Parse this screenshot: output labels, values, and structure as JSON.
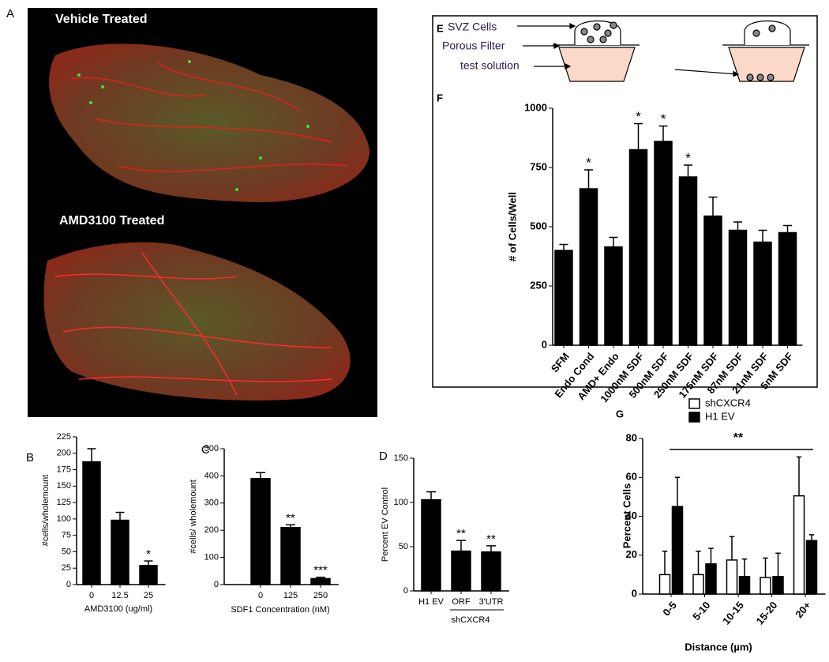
{
  "panels": {
    "letters": [
      "A",
      "B",
      "C",
      "D",
      "E",
      "F",
      "G"
    ],
    "image_labels": [
      "Vehicle Treated",
      "AMD3100 Treated"
    ],
    "diagram_labels": [
      "SVZ Cells",
      "Porous Filter",
      "test solution"
    ]
  },
  "chart_data": [
    {
      "type": "bar",
      "categories": [
        "0",
        "12.5",
        "25"
      ],
      "values": [
        187,
        98,
        29
      ],
      "errors": [
        20,
        12,
        7
      ],
      "significance": [
        null,
        null,
        "*"
      ],
      "xlabel": "AMD3100 (ug/ml)",
      "ylabel": "#cells/wholemount",
      "ylim": [
        0,
        225
      ],
      "yticks": [
        0,
        25,
        50,
        75,
        100,
        125,
        150,
        175,
        200,
        225
      ],
      "color": "#000000"
    },
    {
      "type": "bar",
      "categories": [
        "0",
        "125",
        "250"
      ],
      "values": [
        390,
        210,
        22
      ],
      "errors": [
        22,
        10,
        5
      ],
      "significance": [
        null,
        "**",
        "***"
      ],
      "xlabel": "SDF1 Concentration (nM)",
      "ylabel": "#cells/ wholemount",
      "ylim": [
        0,
        500
      ],
      "yticks": [
        0,
        100,
        200,
        300,
        400,
        500
      ],
      "color": "#000000"
    },
    {
      "type": "bar",
      "categories": [
        "H1 EV",
        "ORF",
        "3'UTR"
      ],
      "values": [
        103,
        45,
        44
      ],
      "errors": [
        9,
        12,
        7
      ],
      "significance": [
        null,
        "**",
        "**"
      ],
      "group_label": "shCXCR4",
      "ylabel": "Percent EV Control",
      "ylim": [
        0,
        150
      ],
      "yticks": [
        0,
        50,
        100,
        150
      ],
      "color": "#000000"
    },
    {
      "type": "bar",
      "categories": [
        "SFM",
        "Endo Cond",
        "AMD+ Endo",
        "1000nM SDF",
        "500nM SDF",
        "250nM SDF",
        "175nM SDF",
        "87nM SDF",
        "21nM SDF",
        "5nM SDF"
      ],
      "values": [
        400,
        660,
        415,
        825,
        860,
        710,
        545,
        485,
        435,
        475
      ],
      "errors": [
        25,
        80,
        40,
        110,
        65,
        50,
        80,
        35,
        50,
        30
      ],
      "significance": [
        null,
        "*",
        null,
        "*",
        "*",
        "*",
        null,
        null,
        null,
        null
      ],
      "ylabel": "# of Cells/Well",
      "ylim": [
        0,
        1000
      ],
      "yticks": [
        0,
        250,
        500,
        750,
        1000
      ],
      "color": "#000000"
    },
    {
      "type": "grouped_bar",
      "categories": [
        "0-5",
        "5-10",
        "10-15",
        "15-20",
        "20+"
      ],
      "series": [
        {
          "name": "shCXCR4",
          "color": "#ffffff",
          "values": [
            10,
            10,
            17.5,
            8.5,
            50.5
          ],
          "errors": [
            12,
            12,
            12,
            10,
            20
          ]
        },
        {
          "name": "H1 EV",
          "color": "#000000",
          "values": [
            45,
            15.5,
            9,
            9,
            27.5
          ],
          "errors": [
            15,
            8,
            9,
            12,
            3
          ]
        }
      ],
      "annotation": "**",
      "xlabel": "Distance (µm)",
      "ylabel": "Percent Cells",
      "ylim": [
        0,
        80
      ],
      "yticks": [
        0,
        20,
        40,
        60,
        80
      ]
    }
  ]
}
